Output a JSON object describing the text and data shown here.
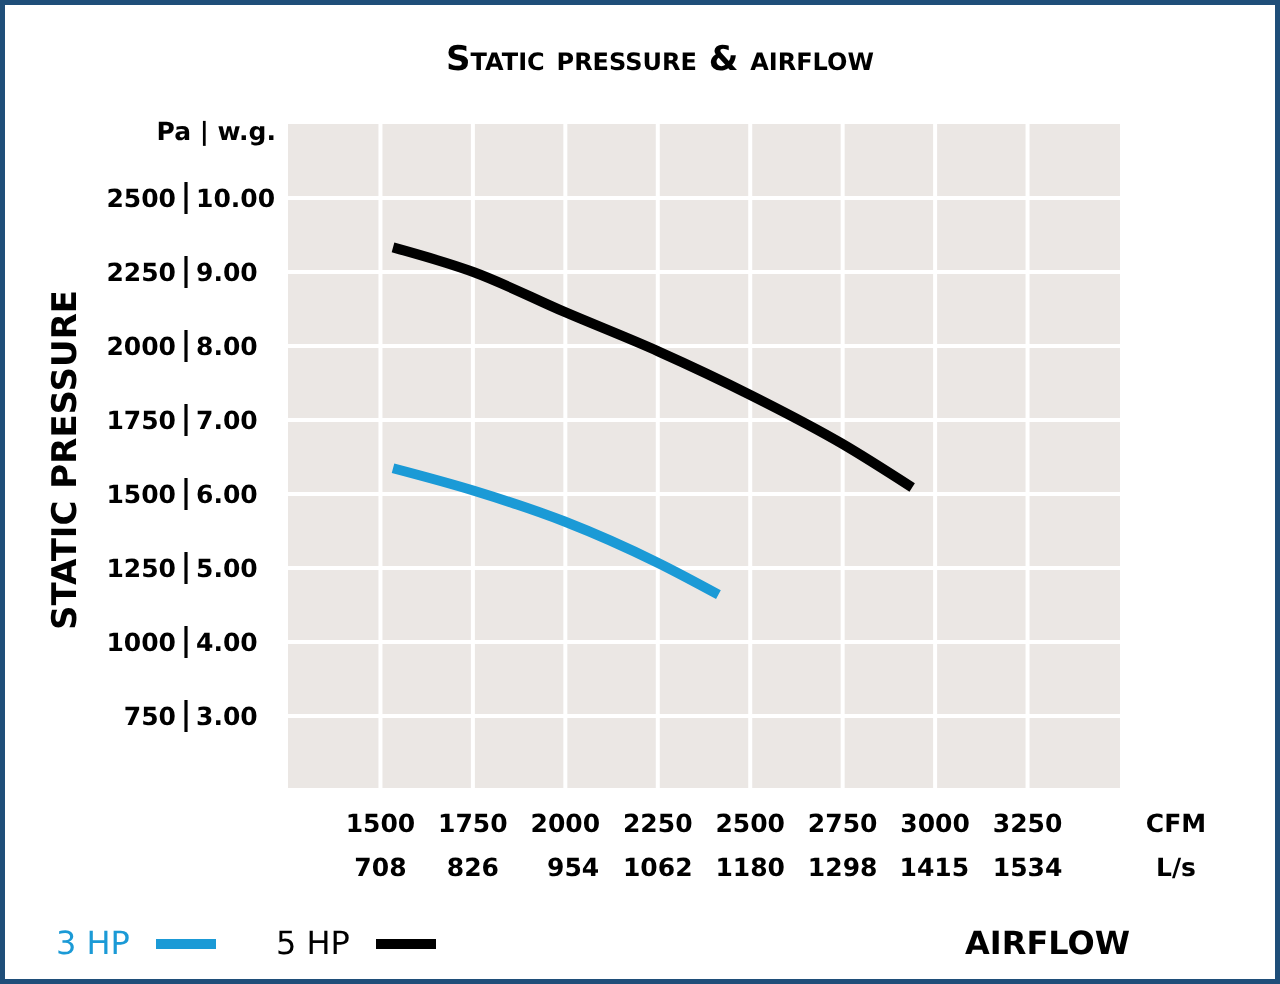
{
  "chart_data": {
    "type": "line",
    "title": "Static pressure & airflow",
    "xlabel": "AIRFLOW",
    "ylabel": "STATIC PRESSURE",
    "annotations": [
      "Pa | w.g.",
      "CFM",
      "L/s"
    ],
    "xlim": [
      1250,
      3500
    ],
    "xticks": [
      1500,
      1750,
      2000,
      2250,
      2500,
      2750,
      3000,
      3250
    ],
    "x2lim": [
      590,
      1652
    ],
    "x2ticks": [
      708,
      826,
      954,
      1062,
      1180,
      1298,
      1415,
      1534
    ],
    "ylim": [
      500,
      2750
    ],
    "yticks": [
      {
        "value": 500,
        "label": null
      },
      750,
      1000,
      1250,
      1500,
      1750,
      2000,
      2250,
      2500
    ],
    "y2lim": [
      2,
      11
    ],
    "y2ticks": [
      {
        "value": 3,
        "label": "3.00"
      },
      {
        "value": 4,
        "label": "4.00"
      },
      {
        "value": 5,
        "label": "5.00"
      },
      {
        "value": 6,
        "label": "6.00"
      },
      {
        "value": 7,
        "label": "7.00"
      },
      {
        "value": 8,
        "label": "8.00"
      },
      {
        "value": 9,
        "label": "9.00"
      },
      {
        "value": 10,
        "label": "10.00"
      }
    ],
    "grid": true,
    "legend": "bottom left",
    "marker": "none",
    "line_style": "solid",
    "series": [
      {
        "name": "3 HP",
        "color": "#1b9ad6",
        "x": [
          1534,
          1753,
          1998,
          2251,
          2414
        ],
        "values": [
          1587,
          1511,
          1407,
          1267,
          1160
        ]
      },
      {
        "name": "5 HP",
        "color": "#000000",
        "x": [
          1534,
          1753,
          1998,
          2251,
          2503,
          2747,
          2938
        ],
        "values": [
          2333,
          2249,
          2115,
          1982,
          1833,
          1671,
          1522
        ]
      }
    ]
  }
}
